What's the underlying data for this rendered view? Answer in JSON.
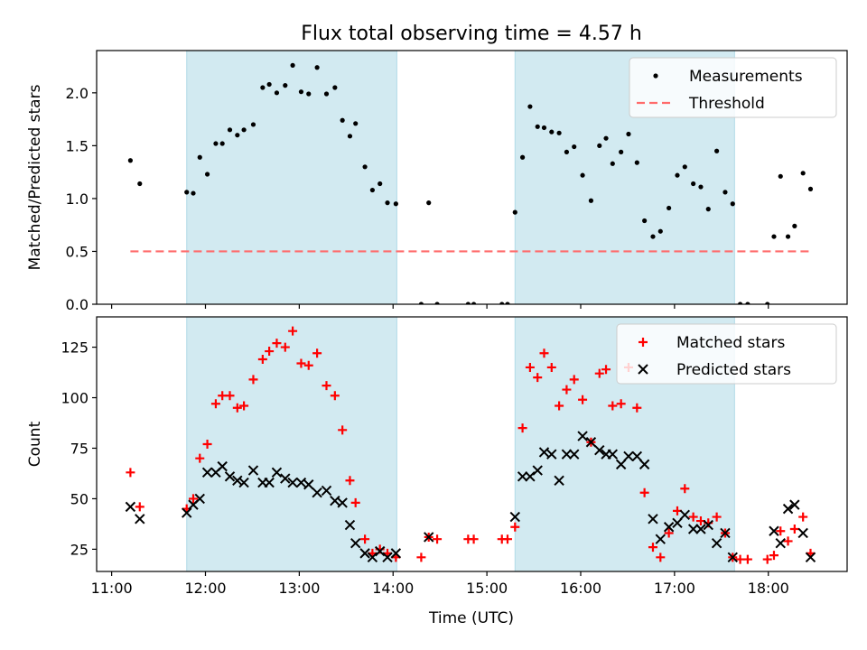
{
  "figure": {
    "title": "Flux total observing time = 4.57 h",
    "xlabel": "Time (UTC)"
  },
  "colors": {
    "shade": "#add8e6",
    "threshold": "#ff6b6b",
    "measurements": "#000000",
    "matched": "#ff0000",
    "predicted": "#000000"
  },
  "chart_data": [
    {
      "type": "scatter",
      "ylabel": "Matched/Predicted stars",
      "ylim": [
        0,
        2.4
      ],
      "yticks": [
        0.0,
        0.5,
        1.0,
        1.5,
        2.0
      ],
      "ytick_labels": [
        "0.0",
        "0.5",
        "1.0",
        "1.5",
        "2.0"
      ],
      "xlim_hours": [
        10.84,
        18.84
      ],
      "shaded_intervals_hours": [
        [
          11.8,
          14.04
        ],
        [
          15.3,
          17.64
        ]
      ],
      "legend": {
        "position": "top-right",
        "entries": [
          "Measurements",
          "Threshold"
        ]
      },
      "threshold": {
        "name": "Threshold",
        "value": 0.5,
        "x_range_hours": [
          11.2,
          18.47
        ]
      },
      "series": [
        {
          "name": "Measurements",
          "marker": "dot",
          "x_hours": [
            11.2,
            11.3,
            11.8,
            11.87,
            11.94,
            12.02,
            12.11,
            12.18,
            12.26,
            12.34,
            12.41,
            12.51,
            12.61,
            12.68,
            12.76,
            12.85,
            12.93,
            13.02,
            13.1,
            13.19,
            13.29,
            13.38,
            13.46,
            13.54,
            13.6,
            13.7,
            13.78,
            13.86,
            13.94,
            14.03,
            14.3,
            14.38,
            14.47,
            14.8,
            14.86,
            15.16,
            15.22,
            15.3,
            15.38,
            15.46,
            15.54,
            15.61,
            15.69,
            15.77,
            15.85,
            15.93,
            16.02,
            16.11,
            16.2,
            16.27,
            16.34,
            16.43,
            16.51,
            16.6,
            16.68,
            16.77,
            16.85,
            16.94,
            17.03,
            17.11,
            17.2,
            17.28,
            17.36,
            17.45,
            17.54,
            17.62,
            17.7,
            17.78,
            17.99,
            18.06,
            18.13,
            18.21,
            18.28,
            18.37,
            18.45
          ],
          "y": [
            1.36,
            1.14,
            1.06,
            1.05,
            1.39,
            1.23,
            1.52,
            1.52,
            1.65,
            1.6,
            1.65,
            1.7,
            2.05,
            2.08,
            2.0,
            2.07,
            2.26,
            2.01,
            1.99,
            2.24,
            1.99,
            2.05,
            1.74,
            1.59,
            1.71,
            1.3,
            1.08,
            1.14,
            0.96,
            0.95,
            0.0,
            0.96,
            0.0,
            0.0,
            0.0,
            0.0,
            0.0,
            0.87,
            1.39,
            1.87,
            1.68,
            1.67,
            1.63,
            1.62,
            1.44,
            1.49,
            1.22,
            0.98,
            1.5,
            1.57,
            1.33,
            1.44,
            1.61,
            1.34,
            0.79,
            0.64,
            0.69,
            0.91,
            1.22,
            1.3,
            1.14,
            1.11,
            0.9,
            1.45,
            1.06,
            0.95,
            0.0,
            0.0,
            0.0,
            0.64,
            1.21,
            0.64,
            0.74,
            1.24,
            1.09
          ]
        }
      ]
    },
    {
      "type": "scatter",
      "ylabel": "Count",
      "ylim": [
        14,
        140
      ],
      "yticks": [
        25,
        50,
        75,
        100,
        125
      ],
      "ytick_labels": [
        "25",
        "50",
        "75",
        "100",
        "125"
      ],
      "xlim_hours": [
        10.84,
        18.84
      ],
      "xticks_hours": [
        11,
        12,
        13,
        14,
        15,
        16,
        17,
        18
      ],
      "xtick_labels": [
        "11:00",
        "12:00",
        "13:00",
        "14:00",
        "15:00",
        "16:00",
        "17:00",
        "18:00"
      ],
      "shaded_intervals_hours": [
        [
          11.8,
          14.04
        ],
        [
          15.3,
          17.64
        ]
      ],
      "legend": {
        "position": "top-right",
        "entries": [
          "Matched stars",
          "Predicted stars"
        ]
      },
      "series": [
        {
          "name": "Matched stars",
          "marker": "plus",
          "x_hours": [
            11.2,
            11.3,
            11.8,
            11.87,
            11.94,
            12.02,
            12.11,
            12.18,
            12.26,
            12.34,
            12.41,
            12.51,
            12.61,
            12.68,
            12.76,
            12.85,
            12.93,
            13.02,
            13.1,
            13.19,
            13.29,
            13.38,
            13.46,
            13.54,
            13.6,
            13.7,
            13.78,
            13.86,
            13.94,
            14.03,
            14.3,
            14.38,
            14.47,
            14.8,
            14.86,
            15.16,
            15.22,
            15.3,
            15.38,
            15.46,
            15.54,
            15.61,
            15.69,
            15.77,
            15.85,
            15.93,
            16.02,
            16.11,
            16.2,
            16.27,
            16.34,
            16.43,
            16.51,
            16.6,
            16.68,
            16.77,
            16.85,
            16.94,
            17.03,
            17.11,
            17.2,
            17.28,
            17.36,
            17.45,
            17.54,
            17.62,
            17.7,
            17.78,
            17.99,
            18.06,
            18.13,
            18.21,
            18.28,
            18.37,
            18.45
          ],
          "y": [
            63,
            46,
            45,
            50,
            70,
            77,
            97,
            101,
            101,
            95,
            96,
            109,
            119,
            123,
            127,
            125,
            133,
            117,
            116,
            122,
            106,
            101,
            84,
            59,
            48,
            30,
            23,
            25,
            23,
            21,
            21,
            31,
            30,
            30,
            30,
            30,
            30,
            36,
            85,
            115,
            110,
            122,
            115,
            96,
            104,
            109,
            99,
            78,
            112,
            114,
            96,
            97,
            115,
            95,
            53,
            26,
            21,
            33,
            44,
            55,
            41,
            39,
            38,
            41,
            33,
            21,
            20,
            20,
            20,
            22,
            34,
            29,
            35,
            41,
            23
          ]
        },
        {
          "name": "Predicted stars",
          "marker": "x",
          "x_hours": [
            11.2,
            11.3,
            11.8,
            11.87,
            11.94,
            12.02,
            12.11,
            12.18,
            12.26,
            12.34,
            12.41,
            12.51,
            12.61,
            12.68,
            12.76,
            12.85,
            12.93,
            13.02,
            13.1,
            13.19,
            13.29,
            13.38,
            13.46,
            13.54,
            13.6,
            13.7,
            13.78,
            13.86,
            13.94,
            14.03,
            14.38,
            15.3,
            15.38,
            15.46,
            15.54,
            15.61,
            15.69,
            15.77,
            15.85,
            15.93,
            16.02,
            16.11,
            16.2,
            16.27,
            16.34,
            16.43,
            16.51,
            16.6,
            16.68,
            16.77,
            16.85,
            16.94,
            17.03,
            17.11,
            17.2,
            17.28,
            17.36,
            17.45,
            17.54,
            17.62,
            18.06,
            18.13,
            18.21,
            18.28,
            18.37,
            18.45
          ],
          "y": [
            46,
            40,
            43,
            47,
            50,
            63,
            63,
            66,
            61,
            59,
            58,
            64,
            58,
            58,
            63,
            60,
            58,
            58,
            57,
            53,
            54,
            49,
            48,
            37,
            28,
            23,
            21,
            24,
            21,
            23,
            31,
            41,
            61,
            61,
            64,
            73,
            72,
            59,
            72,
            72,
            81,
            78,
            74,
            72,
            72,
            67,
            71,
            71,
            67,
            40,
            30,
            36,
            38,
            42,
            35,
            35,
            37,
            28,
            33,
            21,
            34,
            28,
            45,
            47,
            33,
            21
          ]
        }
      ]
    }
  ]
}
